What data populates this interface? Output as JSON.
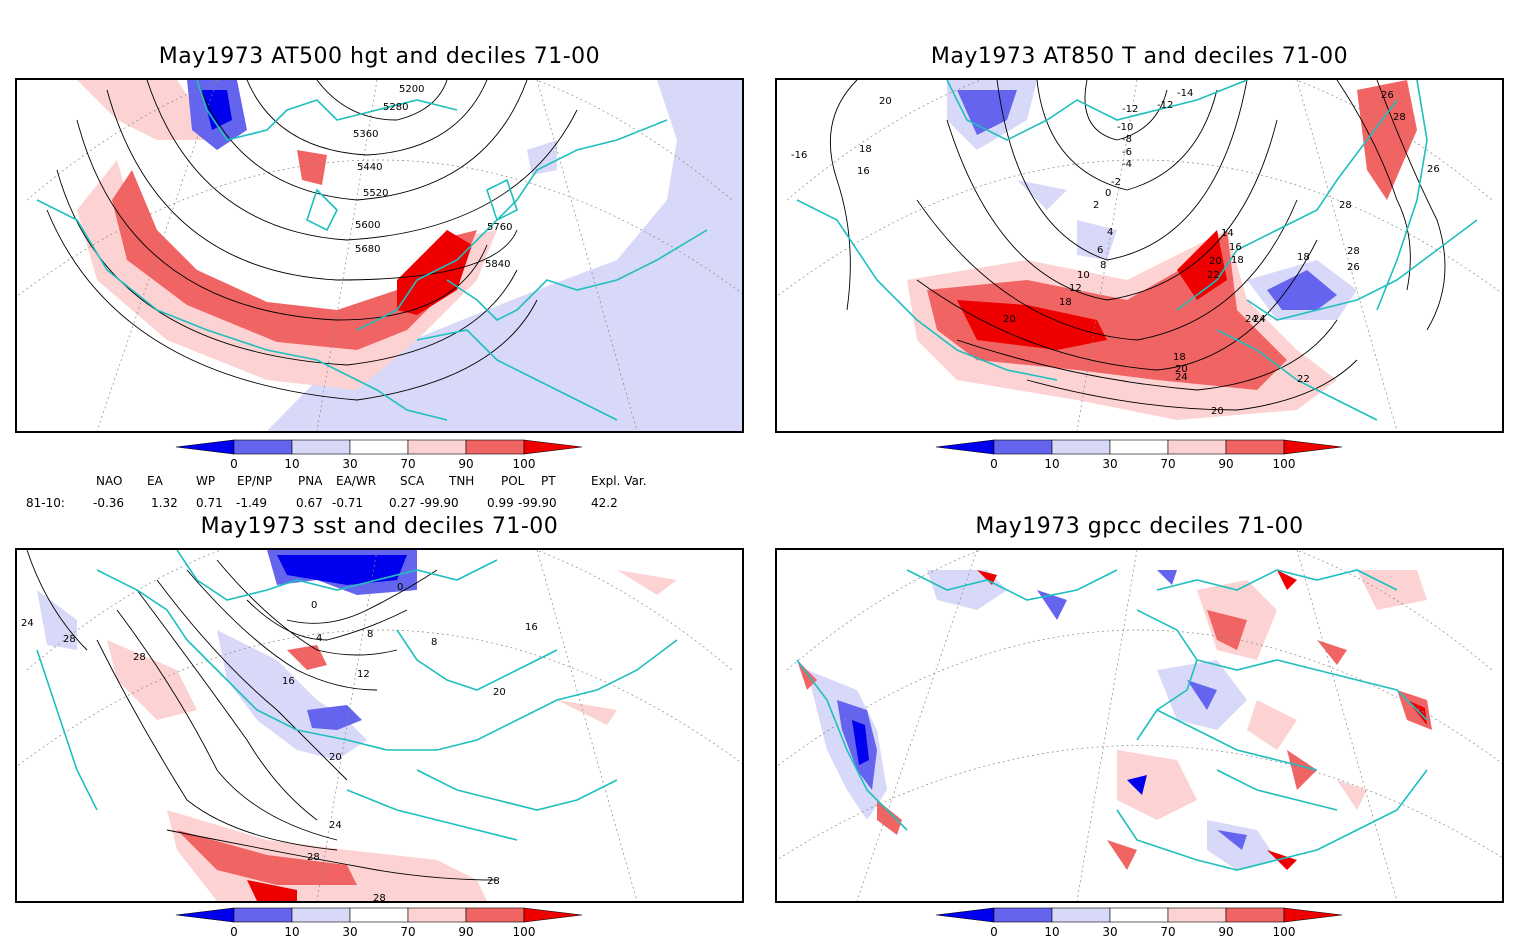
{
  "panels": {
    "p1": {
      "title": "May1973 AT500 hgt and deciles 71-00",
      "contour_labels": [
        "5200",
        "5280",
        "5360",
        "5440",
        "5520",
        "5600",
        "5680",
        "5760",
        "5840"
      ]
    },
    "p2": {
      "title": "May1973 AT850 T and deciles 71-00",
      "contour_labels": [
        "-16",
        "20",
        "18",
        "16",
        "-14",
        "-12",
        "-12",
        "-10",
        "-8",
        "-6",
        "-4",
        "-2",
        "0",
        "2",
        "4",
        "6",
        "8",
        "10",
        "12",
        "14",
        "16",
        "18",
        "20",
        "22",
        "24",
        "26",
        "28",
        "28",
        "28",
        "26",
        "24",
        "26",
        "18",
        "20",
        "18",
        "20",
        "24",
        "22",
        "20",
        "18",
        "16"
      ]
    },
    "p3": {
      "title": "May1973 sst and deciles 71-00",
      "contour_labels": [
        "24",
        "28",
        "28",
        "0",
        "4",
        "8",
        "12",
        "16",
        "20",
        "24",
        "28",
        "28",
        "20",
        "16",
        "8",
        "0",
        "28"
      ]
    },
    "p4": {
      "title": "May1973 gpcc deciles 71-00"
    }
  },
  "colorbar": {
    "tick_labels": [
      "0",
      "10",
      "30",
      "70",
      "90",
      "100"
    ],
    "colors": [
      "#0000ee",
      "#6464ee",
      "#d8d8f8",
      "#ffffff",
      "#fcd2d2",
      "#f06464",
      "#ee0000"
    ]
  },
  "indices": {
    "headers": [
      "NAO",
      "EA",
      "WP",
      "EP/NP",
      "PNA",
      "EA/WR",
      "SCA",
      "TNH",
      "POL",
      "PT",
      "Expl. Var."
    ],
    "row_label": "81-10:",
    "values": [
      "-0.36",
      "1.32",
      "0.71",
      "-1.49",
      "0.67",
      "-0.71",
      "0.27",
      "-99.90",
      "0.99",
      "-99.90",
      "42.2"
    ]
  },
  "colors": {
    "coast": "#1fbfbf",
    "contour": "#000000",
    "grid": "#888888"
  }
}
